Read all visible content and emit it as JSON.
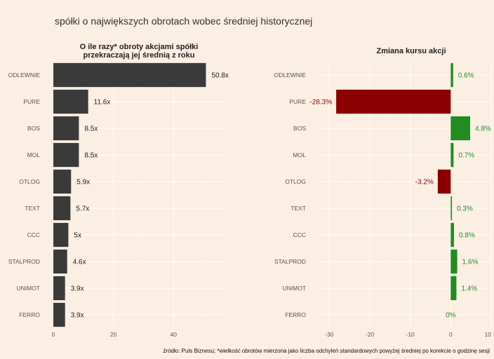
{
  "title": "spółki o największych obrotach wobec średniej historycznej",
  "caption": "źródło: Puls Biznesu; *wielkość obrotów mierzona jako liczba odchyleń standardowych powyżej średniej po korekcie o godzinę sesji",
  "colors": {
    "background": "#fbeee2",
    "bar_dark": "#3a3a3a",
    "positive": "#228b22",
    "negative": "#8b0000",
    "label_dark": "#222222"
  },
  "chart_data": [
    {
      "type": "bar",
      "orientation": "horizontal",
      "title_lines": [
        "O ile razy* obroty akcjami spółki",
        "przekraczają jej średnią z roku"
      ],
      "categories": [
        "ODLEWNIE",
        "PURE",
        "BOS",
        "MOL",
        "OTLOG",
        "TEXT",
        "CCC",
        "STALPROD",
        "UNIMOT",
        "FERRO"
      ],
      "values": [
        50.8,
        11.6,
        8.5,
        8.5,
        5.9,
        5.7,
        5.0,
        4.6,
        3.9,
        3.9
      ],
      "value_labels": [
        "50.8x",
        "11.6x",
        "8.5x",
        "8.5x",
        "5.9x",
        "5.7x",
        "5x",
        "4.6x",
        "3.9x",
        "3.9x"
      ],
      "xlim": [
        0,
        57
      ],
      "xticks": [
        0,
        20,
        40
      ],
      "xtick_labels": [
        "0",
        "20",
        "40"
      ],
      "grid": true
    },
    {
      "type": "bar",
      "orientation": "horizontal",
      "title": "Zmiana kursu akcji",
      "categories": [
        "ODLEWNIE",
        "PURE",
        "BOS",
        "MOL",
        "OTLOG",
        "TEXT",
        "CCC",
        "STALPROD",
        "UNIMOT",
        "FERRO"
      ],
      "values": [
        0.6,
        -28.3,
        4.8,
        0.7,
        -3.2,
        0.3,
        0.8,
        1.6,
        1.4,
        0.0
      ],
      "value_labels": [
        "0.6%",
        "-28.3%",
        "4.8%",
        "0.7%",
        "-3.2%",
        "0.3%",
        "0.8%",
        "1.6%",
        "1.4%",
        "0%"
      ],
      "xlim": [
        -33,
        10
      ],
      "xticks": [
        -30,
        -20,
        -10,
        0,
        10
      ],
      "xtick_labels": [
        "-30",
        "-20",
        "-10",
        "0",
        "10"
      ],
      "grid": true
    }
  ]
}
